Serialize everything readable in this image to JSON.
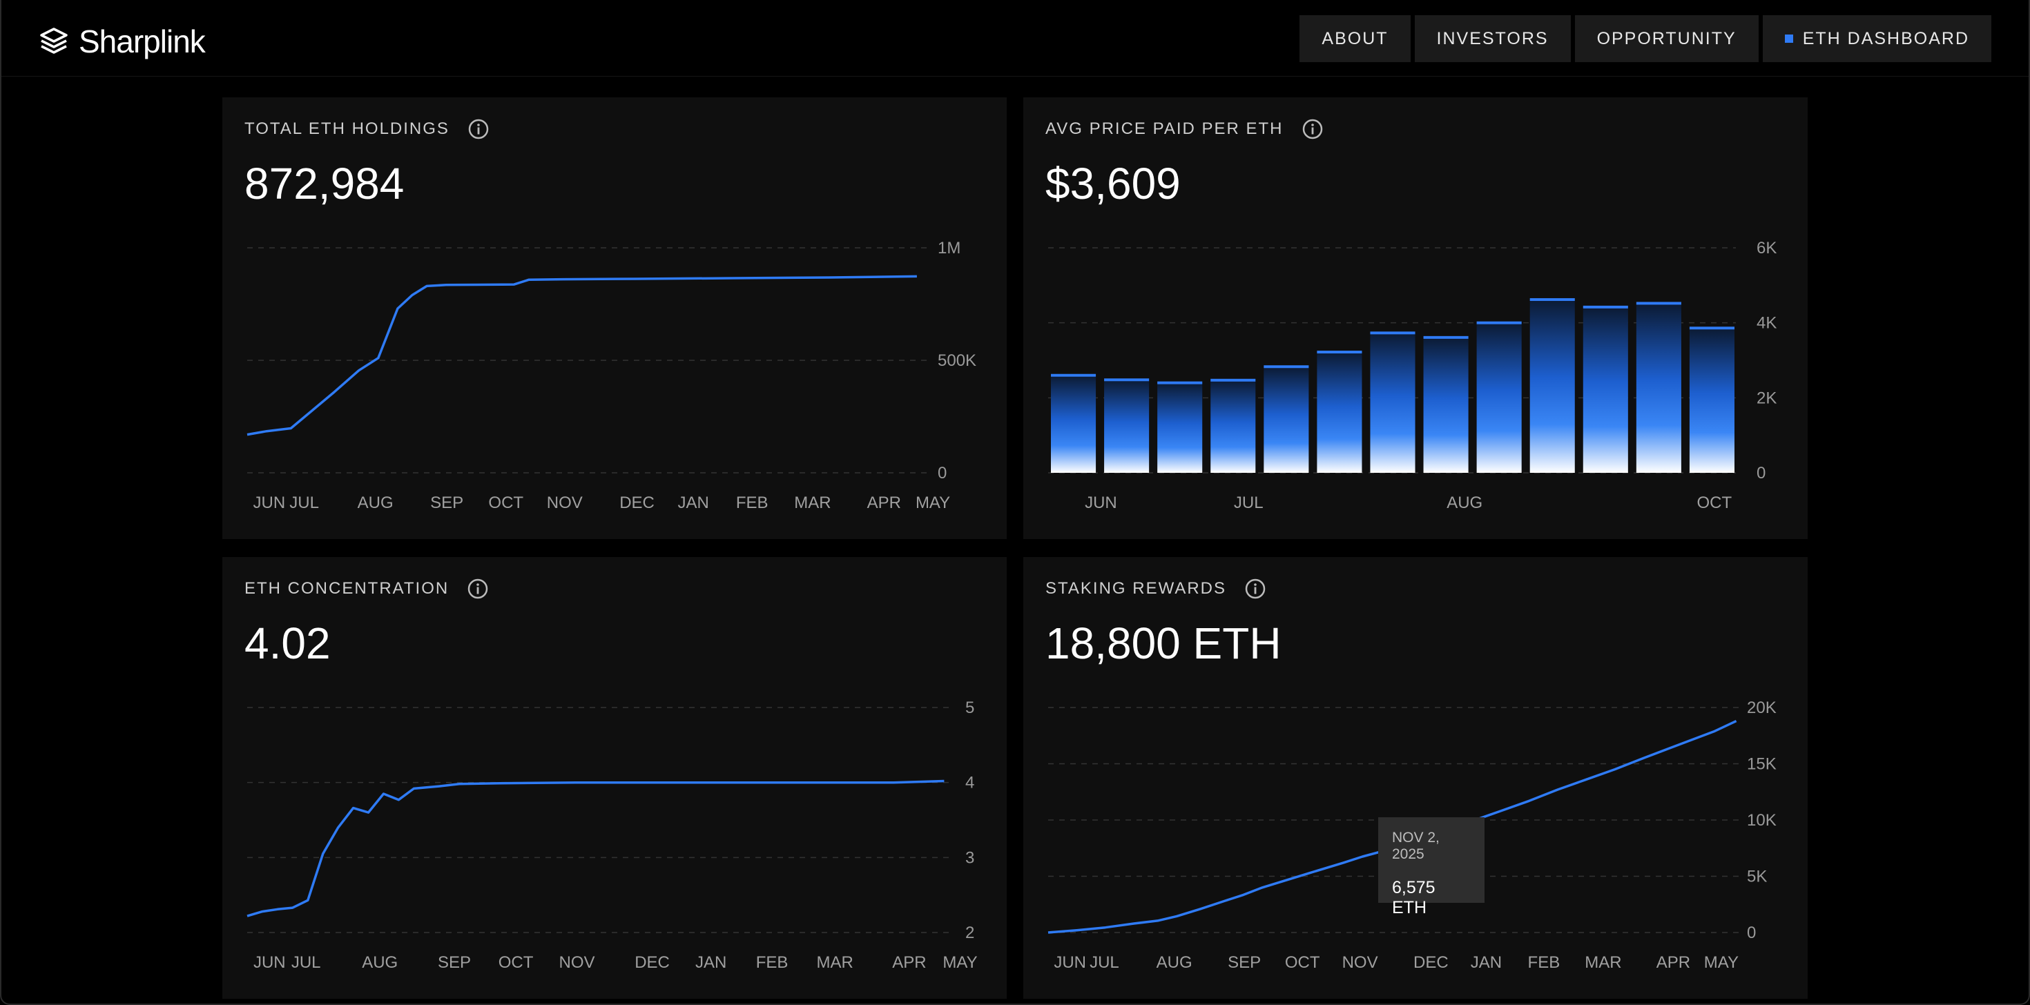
{
  "header": {
    "brand": "Sharplink",
    "nav": [
      {
        "label": "ABOUT",
        "active": false
      },
      {
        "label": "INVESTORS",
        "active": false
      },
      {
        "label": "OPPORTUNITY",
        "active": false
      },
      {
        "label": "ETH DASHBOARD",
        "active": true
      }
    ]
  },
  "colors": {
    "accent": "#2f7bf5",
    "card_bg": "#0f0f0f",
    "page_bg": "#000000"
  },
  "cards": {
    "holdings": {
      "title": "TOTAL ETH HOLDINGS",
      "value": "872,984"
    },
    "avg_price": {
      "title": "AVG PRICE PAID PER ETH",
      "value": "$3,609"
    },
    "concentration": {
      "title": "ETH CONCENTRATION",
      "value": "4.02"
    },
    "staking": {
      "title": "STAKING REWARDS",
      "value": "18,800 ETH",
      "tooltip": {
        "date": "NOV 2, 2025",
        "value": "6,575 ETH"
      }
    }
  },
  "chart_data": [
    {
      "id": "holdings",
      "type": "line",
      "ylim": [
        0,
        1000000
      ],
      "y_ticks": [
        {
          "v": 0,
          "label": "0"
        },
        {
          "v": 500000,
          "label": "500K"
        },
        {
          "v": 1000000,
          "label": "1M"
        }
      ],
      "x_ticks": [
        "JUN",
        "JUL",
        "AUG",
        "SEP",
        "OCT",
        "NOV",
        "DEC",
        "JAN",
        "FEB",
        "MAR",
        "APR",
        "MAY"
      ],
      "x_tick_pos": [
        0.3,
        1.8,
        4.6,
        7.6,
        10,
        12.4,
        15.4,
        17.8,
        20.2,
        22.6,
        25.6,
        27.6
      ],
      "x_max": 28,
      "points": [
        [
          0,
          170000
        ],
        [
          0.8,
          185000
        ],
        [
          1.8,
          198000
        ],
        [
          2.6,
          270000
        ],
        [
          3.6,
          360000
        ],
        [
          4.6,
          455000
        ],
        [
          5.4,
          510000
        ],
        [
          6.2,
          730000
        ],
        [
          6.8,
          790000
        ],
        [
          7.4,
          830000
        ],
        [
          8.2,
          835000
        ],
        [
          9.5,
          836000
        ],
        [
          11,
          837000
        ],
        [
          11.6,
          858000
        ],
        [
          13,
          860000
        ],
        [
          16,
          862000
        ],
        [
          20,
          865000
        ],
        [
          24,
          868000
        ],
        [
          27.6,
          872984
        ]
      ]
    },
    {
      "id": "avg_price",
      "type": "bar",
      "ylim": [
        0,
        6000
      ],
      "y_ticks": [
        {
          "v": 0,
          "label": "0"
        },
        {
          "v": 2000,
          "label": "2K"
        },
        {
          "v": 4000,
          "label": "4K"
        },
        {
          "v": 6000,
          "label": "6K"
        }
      ],
      "x_labels": [
        {
          "index": 0.5,
          "label": "JUN"
        },
        {
          "index": 3.3,
          "label": "JUL"
        },
        {
          "index": 7.3,
          "label": "AUG"
        },
        {
          "index": 12.0,
          "label": "OCT"
        }
      ],
      "values": [
        2600,
        2480,
        2400,
        2470,
        2830,
        3220,
        3730,
        3610,
        4000,
        4620,
        4420,
        4520,
        3860
      ]
    },
    {
      "id": "concentration",
      "type": "line",
      "ylim": [
        2,
        5
      ],
      "y_ticks": [
        {
          "v": 2,
          "label": "2"
        },
        {
          "v": 3,
          "label": "3"
        },
        {
          "v": 4,
          "label": "4"
        },
        {
          "v": 5,
          "label": "5"
        }
      ],
      "x_ticks": [
        "JUN",
        "JUL",
        "AUG",
        "SEP",
        "OCT",
        "NOV",
        "DEC",
        "JAN",
        "FEB",
        "MAR",
        "APR",
        "MAY"
      ],
      "x_tick_pos": [
        0.3,
        1.8,
        4.6,
        7.6,
        10,
        12.4,
        15.4,
        17.8,
        20.2,
        22.6,
        25.6,
        27.6
      ],
      "x_max": 28,
      "points": [
        [
          0,
          2.22
        ],
        [
          0.6,
          2.28
        ],
        [
          1.2,
          2.31
        ],
        [
          1.8,
          2.33
        ],
        [
          2.4,
          2.43
        ],
        [
          3.0,
          3.05
        ],
        [
          3.6,
          3.4
        ],
        [
          4.2,
          3.66
        ],
        [
          4.8,
          3.6
        ],
        [
          5.4,
          3.85
        ],
        [
          6.0,
          3.77
        ],
        [
          6.6,
          3.92
        ],
        [
          7.6,
          3.95
        ],
        [
          8.4,
          3.98
        ],
        [
          10,
          3.99
        ],
        [
          13,
          4.0
        ],
        [
          20,
          4.0
        ],
        [
          25.6,
          4.0
        ],
        [
          27.6,
          4.02
        ]
      ]
    },
    {
      "id": "staking",
      "type": "line",
      "ylim": [
        0,
        20000
      ],
      "y_ticks": [
        {
          "v": 0,
          "label": "0"
        },
        {
          "v": 5000,
          "label": "5K"
        },
        {
          "v": 10000,
          "label": "10K"
        },
        {
          "v": 15000,
          "label": "15K"
        },
        {
          "v": 20000,
          "label": "20K"
        }
      ],
      "x_ticks": [
        "JUN",
        "JUL",
        "AUG",
        "SEP",
        "OCT",
        "NOV",
        "DEC",
        "JAN",
        "FEB",
        "MAR",
        "APR",
        "MAY"
      ],
      "x_tick_pos": [
        0.3,
        1.8,
        4.6,
        7.6,
        10,
        12.4,
        15.4,
        17.8,
        20.2,
        22.6,
        25.6,
        27.6
      ],
      "x_max": 28,
      "points": [
        [
          0,
          0
        ],
        [
          1.2,
          200
        ],
        [
          2.4,
          450
        ],
        [
          3.6,
          800
        ],
        [
          4.6,
          1050
        ],
        [
          5.4,
          1450
        ],
        [
          6.4,
          2100
        ],
        [
          7.4,
          2800
        ],
        [
          8.2,
          3350
        ],
        [
          9,
          4000
        ],
        [
          10,
          4650
        ],
        [
          11,
          5300
        ],
        [
          12.4,
          6200
        ],
        [
          13.2,
          6750
        ],
        [
          14,
          7200
        ],
        [
          15,
          7800
        ],
        [
          16,
          8500
        ],
        [
          17,
          9200
        ],
        [
          18,
          10050
        ],
        [
          19,
          10800
        ],
        [
          20.2,
          11700
        ],
        [
          21.4,
          12700
        ],
        [
          22.6,
          13600
        ],
        [
          23.8,
          14500
        ],
        [
          25,
          15500
        ],
        [
          26,
          16300
        ],
        [
          27,
          17100
        ],
        [
          28,
          17900
        ],
        [
          28.9,
          18800
        ]
      ],
      "x_max_override": 29
    }
  ]
}
